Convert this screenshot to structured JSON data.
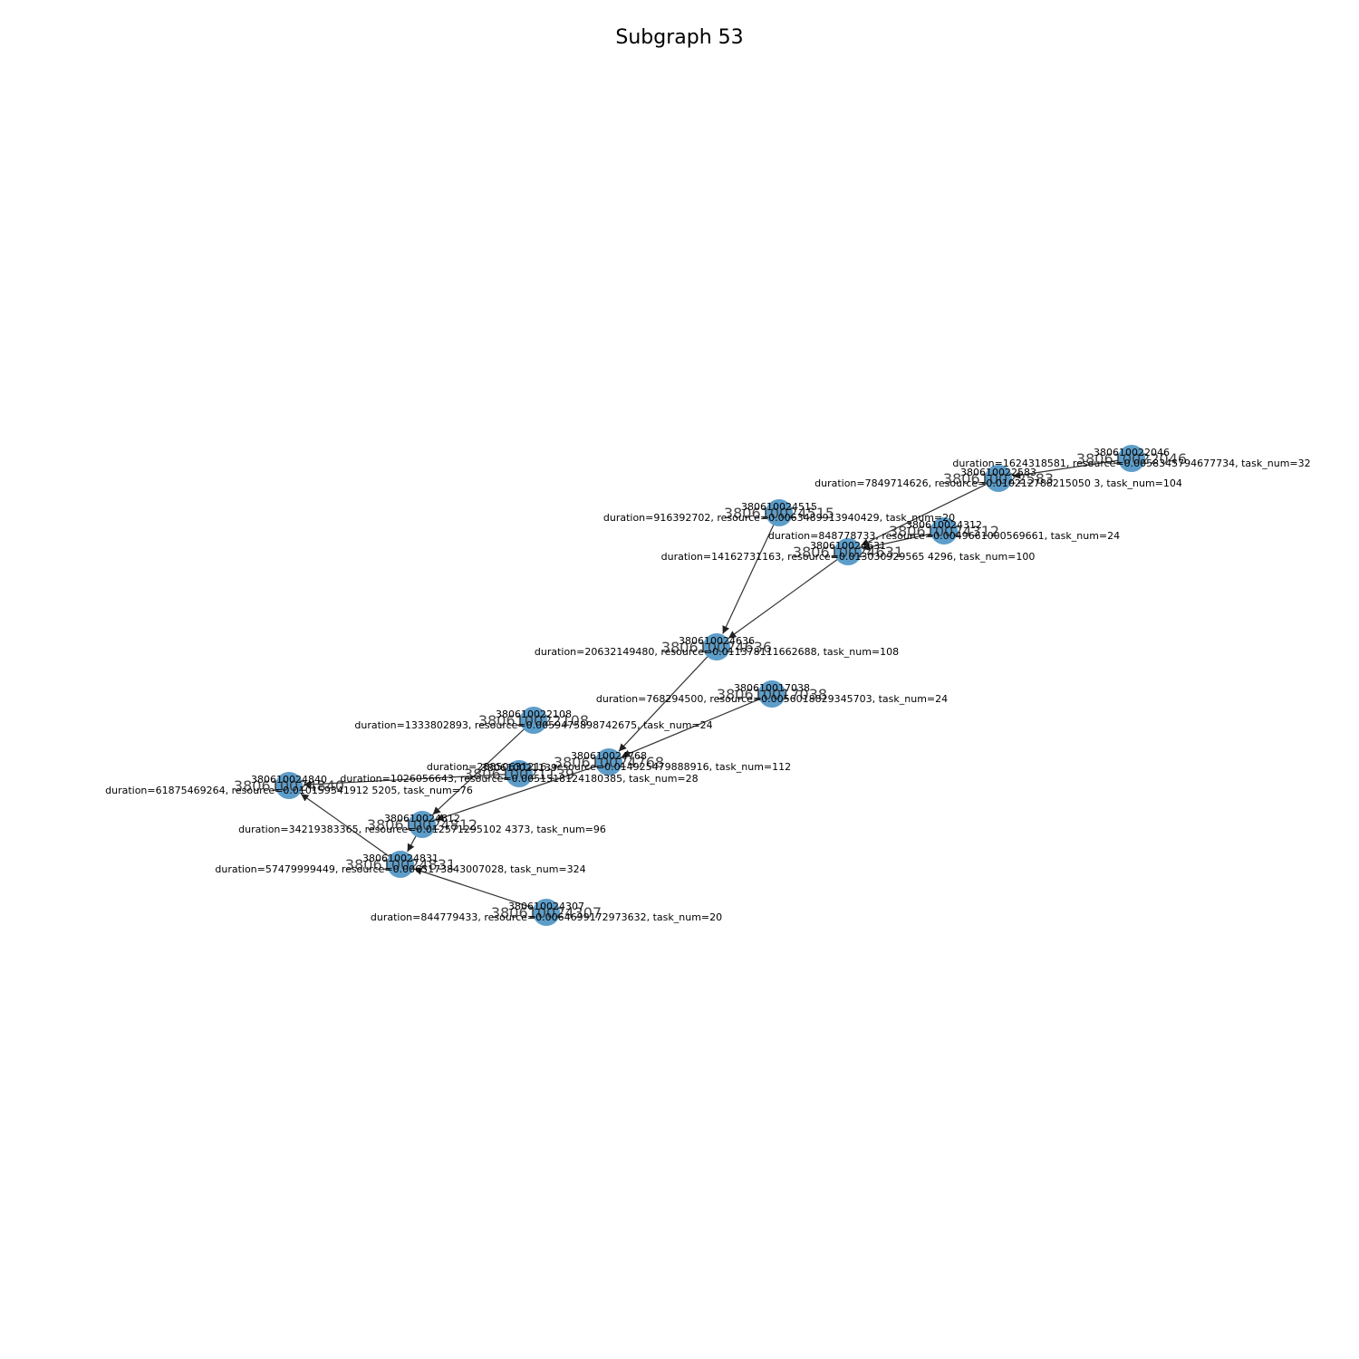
{
  "title": "Subgraph 53",
  "colors": {
    "node": "#1f77b4",
    "edge": "#333333",
    "background": "#ffffff"
  },
  "nodes": [
    {
      "id": "380610022046",
      "annotation_id": "380610022046",
      "annotation": "duration=1624318581, resource=0.0058345794677734, task_num=32"
    },
    {
      "id": "380610022583",
      "annotation_id": "380610022583",
      "annotation": "duration=7849714626, resource=0.010212788215050 3, task_num=104"
    },
    {
      "id": "380610024515",
      "annotation_id": "380610024515",
      "annotation": "duration=916392702, resource=0.0063489913940429, task_num=20"
    },
    {
      "id": "380610024312",
      "annotation_id": "380610024312",
      "annotation": "duration=848778733, resource=0.0049661000569661, task_num=24"
    },
    {
      "id": "380610024631",
      "annotation_id": "380610024631",
      "annotation": "duration=14162731163, resource=0.013030929565 4296, task_num=100"
    },
    {
      "id": "380610024636",
      "annotation_id": "380610024636",
      "annotation": "duration=20632149480, resource=0.011378111662688, task_num=108"
    },
    {
      "id": "380610017038",
      "annotation_id": "380610017038",
      "annotation": "duration=768294500, resource=0.0056018829345703, task_num=24"
    },
    {
      "id": "380610022108",
      "annotation_id": "380610022108",
      "annotation": "duration=1333802893, resource=0.0059475898742675, task_num=24"
    },
    {
      "id": "380610024768",
      "annotation_id": "380610024768",
      "annotation": "duration=28850631216, resource=0.014925479888916, task_num=112"
    },
    {
      "id": "380610021139",
      "annotation_id": "380610021139",
      "annotation": "duration=1026056643, resource=0.0051518124180385, task_num=28"
    },
    {
      "id": "380610024840",
      "annotation_id": "380610024840",
      "annotation": "duration=61875469264, resource=0.010159341912 5205, task_num=76"
    },
    {
      "id": "380610024812",
      "annotation_id": "380610024812",
      "annotation": "duration=34219383365, resource=0.012571295102 4373, task_num=96"
    },
    {
      "id": "380610024831",
      "annotation_id": "380610024831",
      "annotation": "duration=57479999449, resource=0.0065173843007028, task_num=324"
    },
    {
      "id": "380610024307",
      "annotation_id": "380610024307",
      "annotation": "duration=844779433, resource=0.0064699172973632, task_num=20"
    }
  ],
  "edges": [
    {
      "source": "380610022046",
      "target": "380610022583"
    },
    {
      "source": "380610022583",
      "target": "380610024631"
    },
    {
      "source": "380610024312",
      "target": "380610024631"
    },
    {
      "source": "380610024631",
      "target": "380610024636"
    },
    {
      "source": "380610024515",
      "target": "380610024636"
    },
    {
      "source": "380610024636",
      "target": "380610024768"
    },
    {
      "source": "380610017038",
      "target": "380610024768"
    },
    {
      "source": "380610024768",
      "target": "380610024812"
    },
    {
      "source": "380610022108",
      "target": "380610024812"
    },
    {
      "source": "380610021139",
      "target": "380610024840"
    },
    {
      "source": "380610024812",
      "target": "380610024831"
    },
    {
      "source": "380610024831",
      "target": "380610024840"
    },
    {
      "source": "380610024307",
      "target": "380610024831"
    }
  ]
}
